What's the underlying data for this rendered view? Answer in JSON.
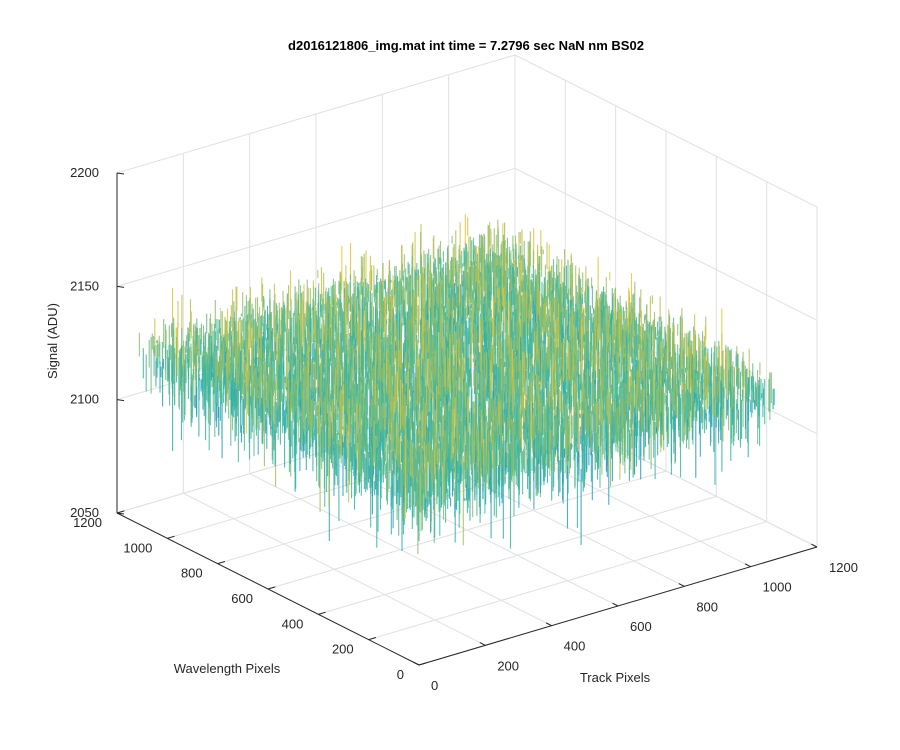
{
  "chart_data": {
    "type": "surface",
    "title": "d2016121806_img.mat int time = 7.2796 sec  NaN nm BS02",
    "xlabel": "Track Pixels",
    "ylabel": "Wavelength Pixels",
    "zlabel": "Signal (ADU)",
    "xlim": [
      0,
      1200
    ],
    "ylim": [
      0,
      1200
    ],
    "zlim": [
      2050,
      2200
    ],
    "x_ticks": [
      "0",
      "200",
      "400",
      "600",
      "800",
      "1000",
      "1200"
    ],
    "y_ticks": [
      "0",
      "200",
      "400",
      "600",
      "800",
      "1000",
      "1200"
    ],
    "z_ticks": [
      "2050",
      "2100",
      "2150",
      "2200"
    ],
    "grid": true,
    "colormap": "parula",
    "surface_mean": 2125,
    "surface_peak": 2150,
    "surface_min": 2080,
    "colors": {
      "low": "#1e7fd6",
      "mid": "#35b7a4",
      "high": "#e9c331",
      "grid": "#e0e0e0",
      "axis": "#262626"
    }
  }
}
